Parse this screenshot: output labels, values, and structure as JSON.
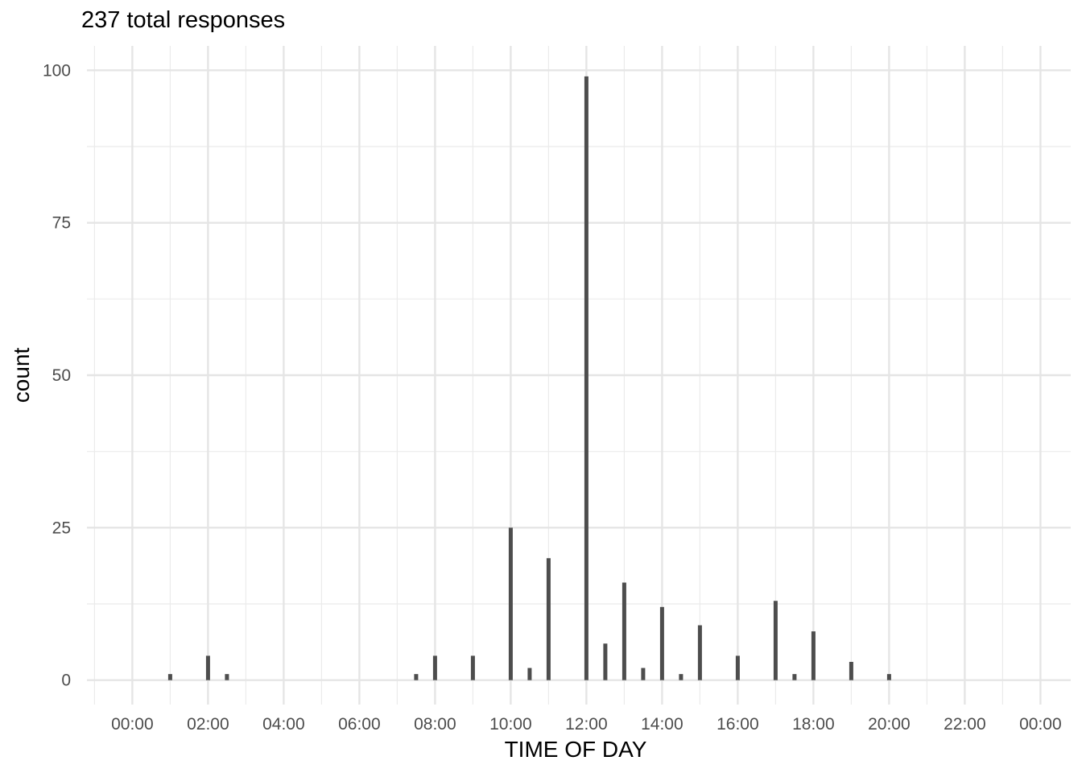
{
  "chart_data": {
    "type": "bar",
    "title": "237 total responses",
    "xlabel": "TIME OF DAY",
    "ylabel": "count",
    "x_unit": "hours",
    "xlim": [
      -1.2,
      24.8
    ],
    "ylim": [
      -4,
      104
    ],
    "x_ticks": [
      {
        "value": 0,
        "label": "00:00"
      },
      {
        "value": 2,
        "label": "02:00"
      },
      {
        "value": 4,
        "label": "04:00"
      },
      {
        "value": 6,
        "label": "06:00"
      },
      {
        "value": 8,
        "label": "08:00"
      },
      {
        "value": 10,
        "label": "10:00"
      },
      {
        "value": 12,
        "label": "12:00"
      },
      {
        "value": 14,
        "label": "14:00"
      },
      {
        "value": 16,
        "label": "16:00"
      },
      {
        "value": 18,
        "label": "18:00"
      },
      {
        "value": 20,
        "label": "20:00"
      },
      {
        "value": 22,
        "label": "22:00"
      },
      {
        "value": 24,
        "label": "00:00"
      }
    ],
    "y_ticks": [
      0,
      25,
      50,
      75,
      100
    ],
    "grid": true,
    "bar_color": "#4d4d4d",
    "x": [
      1,
      2,
      2.5,
      7.5,
      8,
      9,
      10,
      10.5,
      11,
      12,
      12.5,
      13,
      13.5,
      14,
      14.5,
      15,
      16,
      17,
      17.5,
      18,
      19,
      20
    ],
    "values": [
      1,
      4,
      1,
      1,
      4,
      4,
      25,
      2,
      20,
      99,
      6,
      16,
      2,
      12,
      1,
      9,
      4,
      13,
      1,
      8,
      3,
      1
    ]
  }
}
